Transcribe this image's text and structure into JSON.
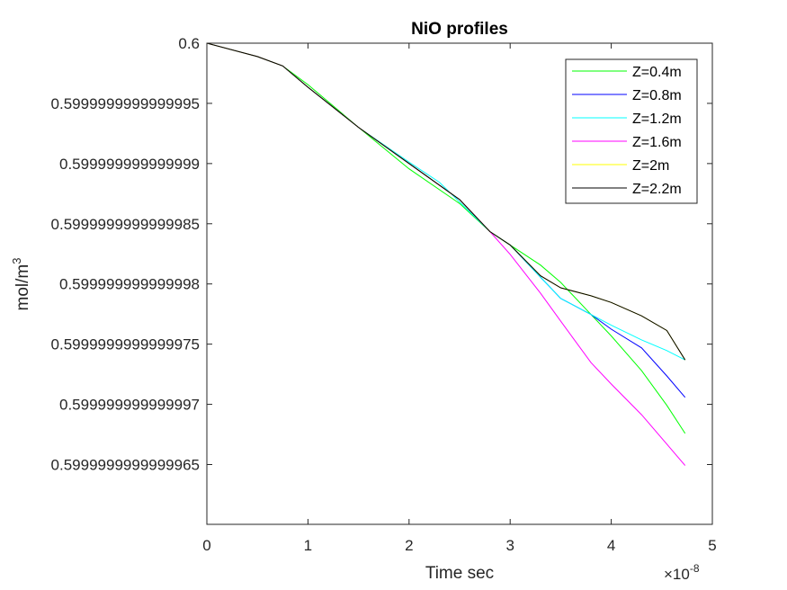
{
  "chart_data": {
    "type": "line",
    "title": "NiO profiles",
    "xlabel": "Time sec",
    "ylabel_base": "mol/m",
    "ylabel_sup": "3",
    "x_exponent_base": "×10",
    "x_exponent_power": "-8",
    "xlim": [
      0,
      5
    ],
    "ylim": [
      0.59999999999996,
      0.6
    ],
    "x_ticks": [
      0,
      1,
      2,
      3,
      4,
      5
    ],
    "x_tick_labels": [
      "0",
      "1",
      "2",
      "3",
      "4",
      "5"
    ],
    "y_ticks_offset": [
      0,
      -0.5,
      -1,
      -1.5,
      -2,
      -2.5,
      -3,
      -3.5
    ],
    "y_tick_labels": [
      "0.6",
      "0.5999999999999995",
      "0.599999999999999",
      "0.5999999999999985",
      "0.599999999999998",
      "0.5999999999999975",
      "0.599999999999997",
      "0.5999999999999965"
    ],
    "legend_position": "top-right",
    "series": [
      {
        "name": "Z=0.4m",
        "color": "#00ff00",
        "x": [
          0,
          0.5,
          0.75,
          1.0,
          1.5,
          2.0,
          2.5,
          2.8,
          3.0,
          3.3,
          3.5,
          3.8,
          4.0,
          4.3,
          4.55,
          4.73
        ],
        "y": [
          0.6,
          0.5999999999999989,
          0.5999999999999981,
          0.5999999999999965,
          0.599999999999993,
          0.5999999999999895,
          0.5999999999999867,
          0.5999999999999843,
          0.5999999999999832,
          0.5999999999999815,
          0.5999999999999801,
          0.5999999999999774,
          0.5999999999999757,
          0.5999999999999728,
          0.5999999999999699,
          0.5999999999999676
        ]
      },
      {
        "name": "Z=0.8m",
        "color": "#0000ff",
        "x": [
          0,
          0.5,
          0.75,
          1.0,
          1.5,
          2.0,
          2.5,
          2.8,
          3.0,
          3.3,
          3.5,
          3.8,
          4.0,
          4.3,
          4.55,
          4.73
        ],
        "y": [
          0.6,
          0.5999999999999989,
          0.5999999999999981,
          0.5999999999999963,
          0.599999999999993,
          0.59999999999999,
          0.599999999999987,
          0.5999999999999843,
          0.5999999999999832,
          0.5999999999999805,
          0.5999999999999788,
          0.5999999999999774,
          0.5999999999999762,
          0.5999999999999747,
          0.5999999999999723,
          0.5999999999999706
        ]
      },
      {
        "name": "Z=1.2m",
        "color": "#00ffff",
        "x": [
          0,
          0.5,
          0.75,
          1.0,
          1.5,
          2.0,
          2.3,
          2.8,
          3.0,
          3.3,
          3.5,
          3.8,
          4.0,
          4.3,
          4.55,
          4.73
        ],
        "y": [
          0.6,
          0.5999999999999989,
          0.5999999999999981,
          0.5999999999999963,
          0.599999999999993,
          0.5999999999999901,
          0.5999999999999884,
          0.5999999999999843,
          0.5999999999999832,
          0.5999999999999805,
          0.5999999999999788,
          0.5999999999999774,
          0.5999999999999766,
          0.5999999999999753,
          0.5999999999999744,
          0.5999999999999737
        ]
      },
      {
        "name": "Z=1.6m",
        "color": "#ff00ff",
        "x": [
          0,
          0.5,
          0.75,
          1.0,
          1.5,
          2.0,
          2.5,
          2.8,
          3.0,
          3.3,
          3.5,
          3.8,
          4.0,
          4.3,
          4.55,
          4.73
        ],
        "y": [
          0.6,
          0.5999999999999989,
          0.5999999999999981,
          0.5999999999999963,
          0.599999999999993,
          0.59999999999999,
          0.599999999999987,
          0.5999999999999843,
          0.5999999999999824,
          0.5999999999999792,
          0.5999999999999769,
          0.5999999999999734,
          0.5999999999999717,
          0.5999999999999691,
          0.5999999999999667,
          0.5999999999999649
        ]
      },
      {
        "name": "Z=2m",
        "color": "#ffff00",
        "x": [
          0,
          0.5,
          0.75,
          1.0,
          1.5,
          2.0,
          2.5,
          2.8,
          3.0,
          3.3,
          3.5,
          3.8,
          4.0,
          4.3,
          4.55,
          4.73
        ],
        "y": [
          0.6,
          0.5999999999999989,
          0.5999999999999981,
          0.5999999999999963,
          0.599999999999993,
          0.59999999999999,
          0.599999999999987,
          0.5999999999999843,
          0.5999999999999832,
          0.5999999999999807,
          0.5999999999999797,
          0.599999999999979,
          0.5999999999999784,
          0.5999999999999773,
          0.5999999999999761,
          0.5999999999999737
        ]
      },
      {
        "name": "Z=2.2m",
        "color": "#000000",
        "x": [
          0,
          0.5,
          0.75,
          1.0,
          1.5,
          2.0,
          2.5,
          2.8,
          3.0,
          3.3,
          3.5,
          3.8,
          4.0,
          4.3,
          4.55,
          4.73
        ],
        "y": [
          0.6,
          0.5999999999999989,
          0.5999999999999981,
          0.5999999999999963,
          0.599999999999993,
          0.59999999999999,
          0.599999999999987,
          0.5999999999999843,
          0.5999999999999832,
          0.5999999999999807,
          0.5999999999999797,
          0.599999999999979,
          0.5999999999999784,
          0.5999999999999773,
          0.5999999999999761,
          0.5999999999999737
        ]
      }
    ]
  }
}
